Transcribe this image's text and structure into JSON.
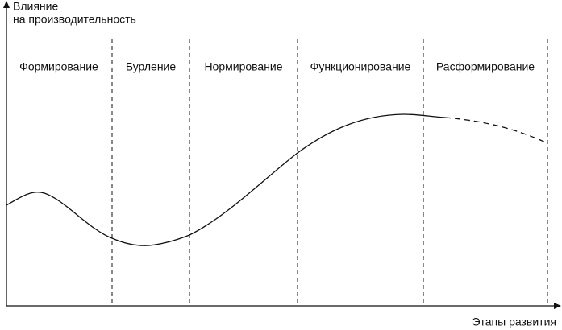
{
  "y_axis_label": [
    "Влияние",
    "на производительность"
  ],
  "x_axis_label": "Этапы развития",
  "stages": [
    "Формирование",
    "Бурление",
    "Нормирование",
    "Функционирование",
    "Расформирование"
  ]
}
